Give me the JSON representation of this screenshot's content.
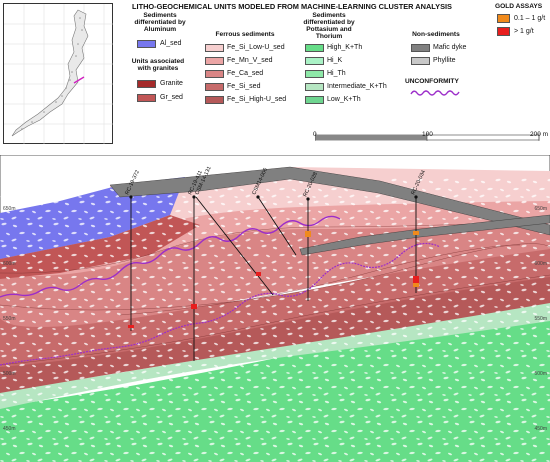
{
  "title": "LITHO-GEOCHEMICAL UNITS MODELED FROM MACHINE-LEARNING CLUSTER ANALYSIS",
  "legend": {
    "aluminum": {
      "heading": "Sediments differentiated by Aluminum",
      "items": [
        "Al_sed"
      ]
    },
    "granites": {
      "heading": "Units associated with granites",
      "items": [
        "Granite",
        "Gr_sed"
      ]
    },
    "ferrous": {
      "heading": "Ferrous sediments",
      "items": [
        "Fe_Si_Low-U_sed",
        "Fe_Mn_V_sed",
        "Fe_Ca_sed",
        "Fe_Si_sed",
        "Fe_Si_High-U_sed"
      ]
    },
    "potassium": {
      "heading": "Sediments differentiated by Pottasium and Thorium",
      "items": [
        "High_K+Th",
        "Hi_K",
        "Hi_Th",
        "Intermediate_K+Th",
        "Low_K+Th"
      ]
    },
    "non_sediments": {
      "heading": "Non-sediments",
      "items": [
        "Mafic dyke",
        "Phyllite"
      ]
    },
    "unconformity": "UNCONFORMITY",
    "gold": {
      "heading": "GOLD ASSAYS",
      "items": [
        "0.1 – 1 g/t",
        "> 1 g/t"
      ]
    }
  },
  "scale": {
    "labels": [
      "0",
      "100",
      "200 m"
    ]
  },
  "section": {
    "drillholes": [
      "RC-19-372",
      "RC-19-411",
      "CSM-14-131",
      "CSM14-006",
      "RC-20-028",
      "RC-20-034"
    ],
    "elevations_left": [
      "650m",
      "600m",
      "550m",
      "500m",
      "450m"
    ],
    "elevations_right": [
      "650m",
      "600m",
      "550m",
      "500m",
      "450m"
    ]
  },
  "colors": {
    "al_sed": "#7777ee",
    "granite": "#a52a2a",
    "gr_sed": "#c15656",
    "fe_si_low_u": "#f6cfcf",
    "fe_mn_v": "#eba5a5",
    "fe_ca": "#d98585",
    "fe_si": "#c76b6b",
    "fe_si_high_u": "#b55959",
    "high_kth": "#66dd88",
    "hi_k": "#aaf2c6",
    "hi_th": "#8ee8a8",
    "intermediate_kth": "#b6e6c2",
    "low_kth": "#6fd590",
    "mafic": "#808080",
    "phyllite": "#c8c8c8",
    "unconformity": "#9c2ec9",
    "gold_low": "#f08a1c",
    "gold_high": "#e81e1e"
  }
}
